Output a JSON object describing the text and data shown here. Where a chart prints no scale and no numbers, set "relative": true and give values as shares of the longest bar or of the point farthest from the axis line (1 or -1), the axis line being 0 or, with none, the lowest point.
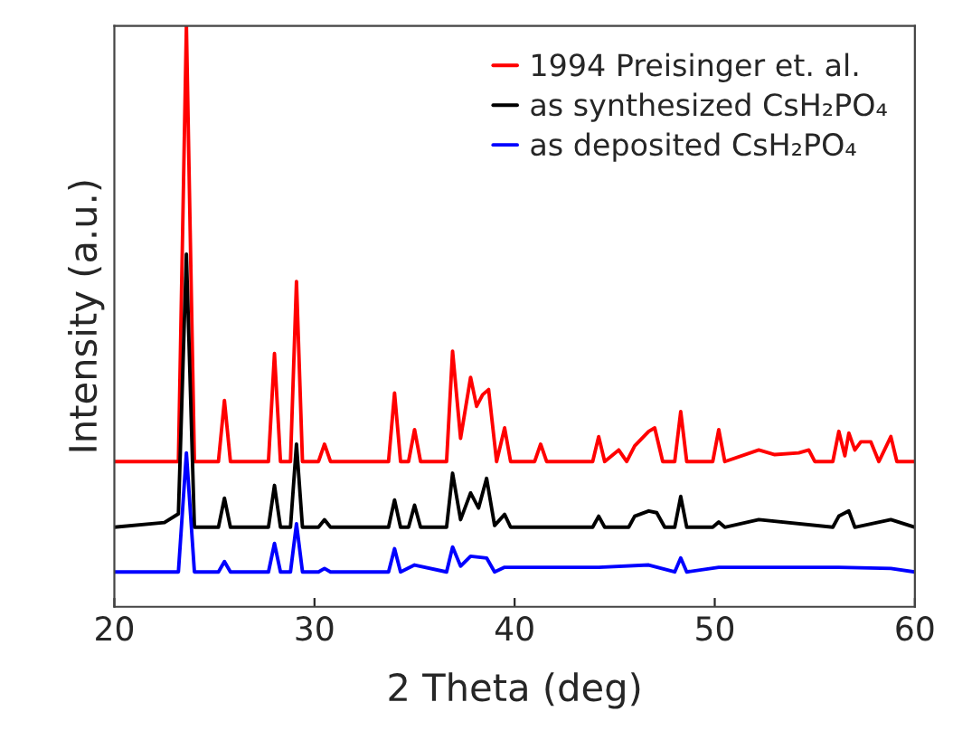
{
  "chart_data": {
    "type": "line",
    "xlabel": "2 Theta (deg)",
    "ylabel": "Intensity (a.u.)",
    "relative": true,
    "xlim": [
      20,
      60
    ],
    "xticks": [
      20,
      30,
      40,
      50,
      60
    ],
    "tick_labels": "x",
    "grid": false,
    "legend": "top right",
    "marker": "none",
    "line_style": "solid",
    "series": [
      {
        "name": "1994 Preisinger et. al.",
        "color": "#ff0000",
        "x": [
          20,
          23.2,
          23.6,
          24.0,
          25.2,
          25.5,
          25.8,
          27.7,
          28.0,
          28.3,
          28.8,
          29.1,
          29.4,
          30.2,
          30.5,
          30.8,
          33.7,
          34.0,
          34.3,
          34.7,
          35.0,
          35.3,
          36.6,
          36.9,
          37.3,
          37.8,
          38.1,
          38.4,
          38.7,
          39.1,
          39.5,
          39.8,
          41.0,
          41.3,
          41.6,
          43.9,
          44.2,
          44.5,
          45.2,
          45.6,
          46.0,
          46.7,
          47.0,
          47.4,
          48.0,
          48.3,
          48.6,
          49.9,
          50.2,
          50.5,
          52.2,
          53.0,
          54.2,
          54.7,
          55.0,
          55.9,
          56.2,
          56.5,
          56.7,
          57.0,
          57.3,
          57.8,
          58.2,
          58.8,
          59.1,
          60
        ],
        "values": [
          0.25,
          0.25,
          1.0,
          0.25,
          0.25,
          0.355,
          0.25,
          0.25,
          0.436,
          0.25,
          0.25,
          0.56,
          0.25,
          0.25,
          0.28,
          0.25,
          0.25,
          0.368,
          0.25,
          0.25,
          0.305,
          0.25,
          0.25,
          0.44,
          0.29,
          0.395,
          0.345,
          0.365,
          0.374,
          0.25,
          0.308,
          0.25,
          0.25,
          0.28,
          0.25,
          0.25,
          0.293,
          0.25,
          0.27,
          0.25,
          0.277,
          0.302,
          0.308,
          0.25,
          0.25,
          0.336,
          0.25,
          0.25,
          0.305,
          0.25,
          0.27,
          0.262,
          0.265,
          0.27,
          0.25,
          0.25,
          0.302,
          0.26,
          0.299,
          0.27,
          0.284,
          0.284,
          0.25,
          0.293,
          0.25,
          0.25
        ]
      },
      {
        "name": "as synthesized CsH₂PO₄",
        "color": "#000000",
        "x": [
          20,
          22.5,
          23.2,
          23.6,
          24.0,
          25.2,
          25.5,
          25.8,
          27.7,
          28.0,
          28.3,
          28.8,
          29.1,
          29.4,
          30.2,
          30.5,
          30.8,
          33.7,
          34.0,
          34.3,
          34.7,
          35.0,
          35.3,
          36.6,
          36.9,
          37.3,
          37.8,
          38.2,
          38.6,
          39.0,
          39.5,
          39.8,
          43.9,
          44.2,
          44.5,
          45.7,
          46.0,
          46.7,
          47.1,
          47.5,
          48.0,
          48.3,
          48.6,
          49.9,
          50.2,
          50.5,
          52.2,
          55.9,
          56.2,
          56.7,
          57.0,
          58.8,
          60
        ],
        "values": [
          0.137,
          0.145,
          0.16,
          0.607,
          0.137,
          0.137,
          0.187,
          0.137,
          0.137,
          0.209,
          0.137,
          0.137,
          0.28,
          0.137,
          0.137,
          0.15,
          0.137,
          0.137,
          0.184,
          0.137,
          0.137,
          0.175,
          0.137,
          0.137,
          0.23,
          0.15,
          0.196,
          0.17,
          0.221,
          0.14,
          0.159,
          0.137,
          0.137,
          0.156,
          0.137,
          0.137,
          0.156,
          0.165,
          0.162,
          0.137,
          0.137,
          0.19,
          0.137,
          0.137,
          0.146,
          0.137,
          0.15,
          0.137,
          0.156,
          0.165,
          0.137,
          0.15,
          0.137
        ]
      },
      {
        "name": "as deposited CsH₂PO₄",
        "color": "#0000ff",
        "x": [
          20,
          23.2,
          23.6,
          24.0,
          25.2,
          25.5,
          25.8,
          27.7,
          28.0,
          28.3,
          28.8,
          29.1,
          29.4,
          30.2,
          30.5,
          30.8,
          33.7,
          34.0,
          34.3,
          35.0,
          36.6,
          36.9,
          37.3,
          37.8,
          38.6,
          39.0,
          39.5,
          44.2,
          46.7,
          48.0,
          48.3,
          48.6,
          50.2,
          56.2,
          58.8,
          60
        ],
        "values": [
          0.06,
          0.06,
          0.265,
          0.06,
          0.06,
          0.078,
          0.06,
          0.06,
          0.109,
          0.06,
          0.06,
          0.143,
          0.06,
          0.06,
          0.066,
          0.06,
          0.06,
          0.1,
          0.06,
          0.072,
          0.06,
          0.103,
          0.07,
          0.087,
          0.084,
          0.06,
          0.068,
          0.068,
          0.072,
          0.06,
          0.084,
          0.06,
          0.068,
          0.068,
          0.066,
          0.06
        ]
      }
    ]
  }
}
